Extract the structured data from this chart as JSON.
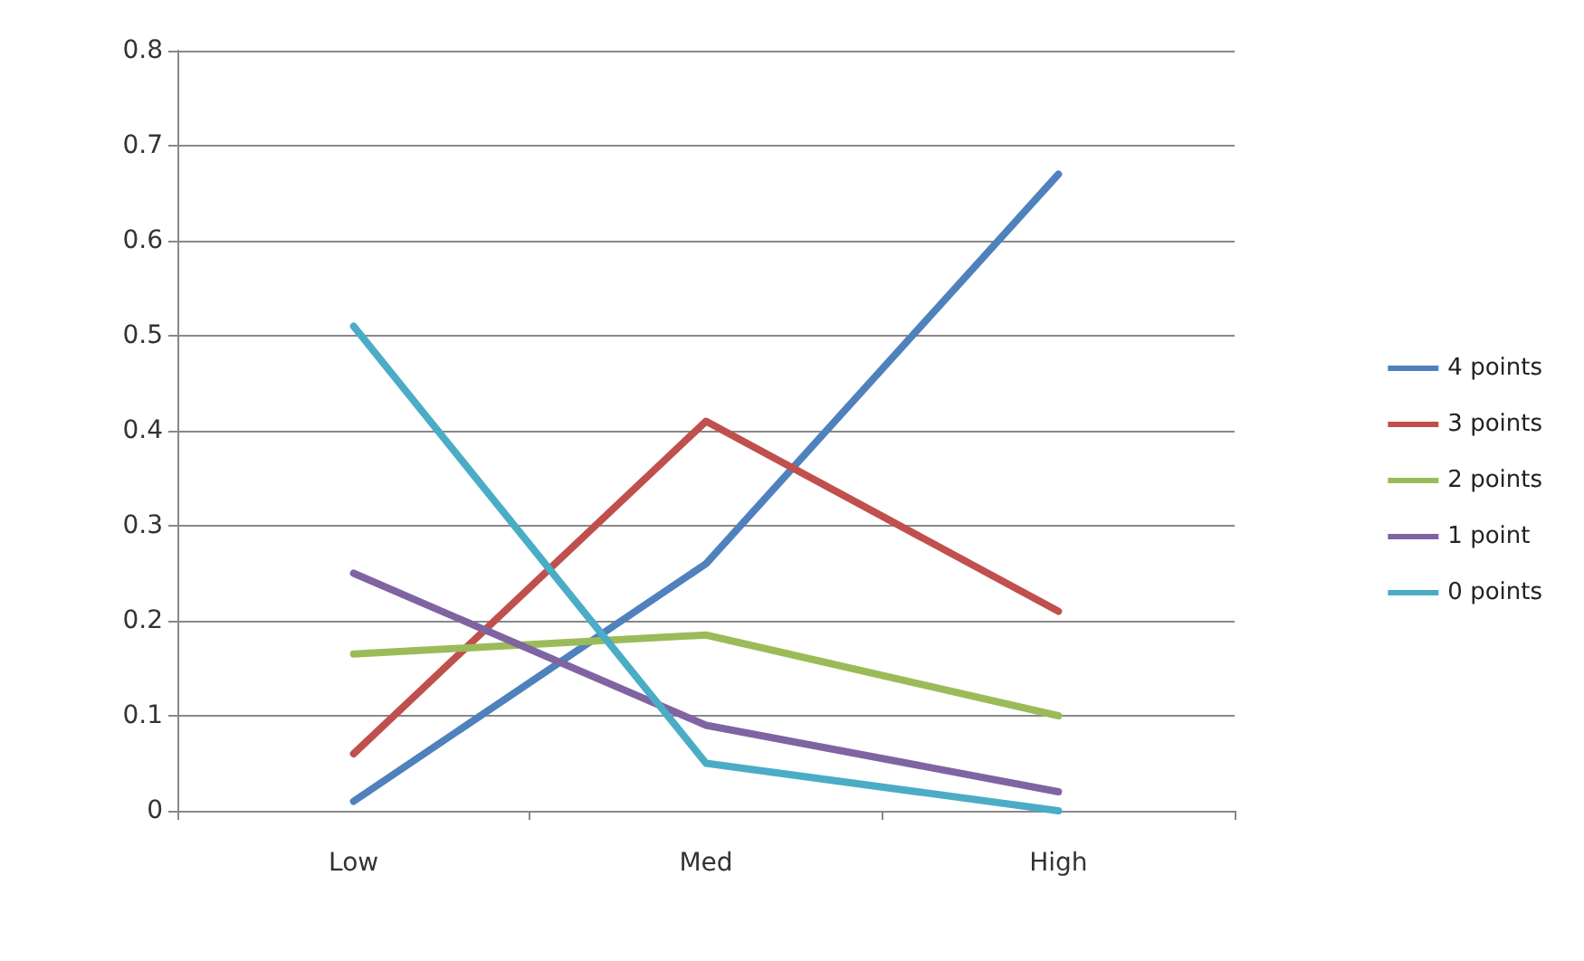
{
  "chart_data": {
    "type": "line",
    "categories": [
      "Low",
      "Med",
      "High"
    ],
    "series": [
      {
        "name": "4 points",
        "color": "#4f81bd",
        "values": [
          0.01,
          0.26,
          0.67
        ]
      },
      {
        "name": "3 points",
        "color": "#c0504d",
        "values": [
          0.06,
          0.41,
          0.21
        ]
      },
      {
        "name": "2 points",
        "color": "#9bbb59",
        "values": [
          0.165,
          0.185,
          0.1
        ]
      },
      {
        "name": "1 point",
        "color": "#8064a2",
        "values": [
          0.25,
          0.09,
          0.02
        ]
      },
      {
        "name": "0 points",
        "color": "#4bacc6",
        "values": [
          0.51,
          0.05,
          0
        ]
      }
    ],
    "ylim": [
      0,
      0.8
    ],
    "yticks": [
      0,
      0.1,
      0.2,
      0.3,
      0.4,
      0.5,
      0.6,
      0.7,
      0.8
    ],
    "grid": "y",
    "legend": "right",
    "marker": "none",
    "line_style": "solid"
  }
}
